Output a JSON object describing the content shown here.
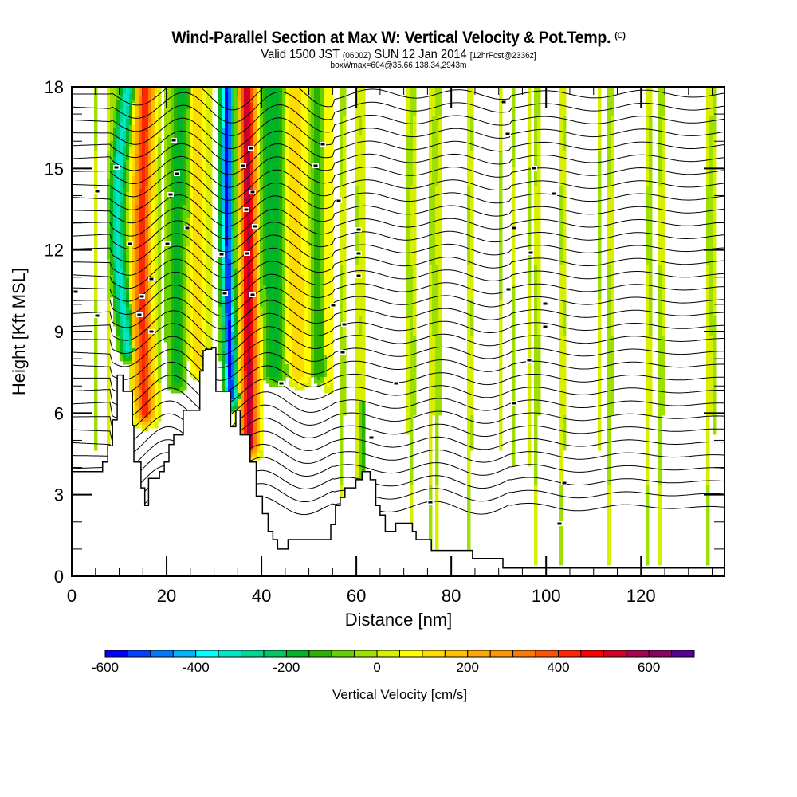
{
  "header": {
    "title": "Wind-Parallel Section at Max W: Vertical Velocity & Pot.Temp.",
    "copyright_mark": "(C)",
    "valid_prefix": "Valid 1500 JST",
    "valid_utc": "(0600Z)",
    "valid_date": "SUN 12 Jan 2014",
    "forecast_info": "[12hrFcst@2336z]",
    "box_info": "boxWmax=604@35.66,138.34,2943m"
  },
  "chart_data": {
    "type": "heatmap",
    "subtype": "vertical cross-section (filled contours of vertical velocity with potential temperature isolines)",
    "title": "Wind-Parallel Section at Max W: Vertical Velocity & Pot.Temp.",
    "xlabel": "Distance [nm]",
    "ylabel": "Height [Kft MSL]",
    "xlim": [
      0,
      137.6
    ],
    "ylim": [
      0,
      18
    ],
    "x_ticks": [
      0,
      20,
      40,
      60,
      80,
      100,
      120
    ],
    "x_tick_labels": [
      "0",
      "20",
      "40",
      "60",
      "80",
      "100",
      "120"
    ],
    "x_minor_step": 5,
    "y_ticks": [
      0,
      3,
      6,
      9,
      12,
      15,
      18
    ],
    "y_tick_labels": [
      "0",
      "3",
      "6",
      "9",
      "12",
      "15",
      "18"
    ],
    "y_minor_step": 1,
    "colorbar": {
      "label": "Vertical Velocity [cm/s]",
      "min": -600,
      "max": 700,
      "step": 50,
      "tick_values": [
        -600,
        -400,
        -200,
        0,
        200,
        400,
        600
      ],
      "tick_labels": [
        "-600",
        "-400",
        "-200",
        "0",
        "200",
        "400",
        "600"
      ],
      "colors": [
        "#0000ff",
        "#0040ff",
        "#0078ff",
        "#00b4ff",
        "#00ffff",
        "#00e6c8",
        "#00d890",
        "#00c860",
        "#00b428",
        "#28b400",
        "#64d200",
        "#a0e000",
        "#d8f000",
        "#ffff00",
        "#ffdc00",
        "#ffc000",
        "#ffaa00",
        "#ff9600",
        "#ff7800",
        "#ff5000",
        "#ff2800",
        "#ff0000",
        "#d20028",
        "#aa0050",
        "#8c0064",
        "#5a0096"
      ]
    },
    "max_w_cm_s": 604,
    "terrain_profile_kft": {
      "x_nm": [
        0,
        6.5,
        7.6,
        8.6,
        9.6,
        10.8,
        12.8,
        13.1,
        14.6,
        15.4,
        16.2,
        17.4,
        18.5,
        19.5,
        20.5,
        21.5,
        22.5,
        23.5,
        24.5,
        27,
        27.7,
        28.2,
        29.5,
        30.4,
        33.5,
        33.5,
        34.6,
        35.5,
        37.6,
        38.9,
        40,
        40.2,
        41.4,
        42.4,
        43.4,
        45.6,
        51.2,
        54.6,
        55.6,
        56.6,
        57.6,
        59.9,
        61.2,
        62.9,
        64.1,
        65,
        66.1,
        68.3,
        71.8,
        72.6,
        75.8,
        84.5,
        90.9,
        137.6
      ],
      "height_kft": [
        3.85,
        4.2,
        4.8,
        5.75,
        7.4,
        6.8,
        5.55,
        4.2,
        3.25,
        2.6,
        3.6,
        3.6,
        3.85,
        4.2,
        4.85,
        5.2,
        5.2,
        6.1,
        6.1,
        7.55,
        8.3,
        8.35,
        8.4,
        6.8,
        6.8,
        5.5,
        6.1,
        5.2,
        4.2,
        2.95,
        2.95,
        2.3,
        1.65,
        1.35,
        1.0,
        1.35,
        1.35,
        1.9,
        2.6,
        2.9,
        3.25,
        3.55,
        3.85,
        3.55,
        2.6,
        2.25,
        1.65,
        1.95,
        1.65,
        1.35,
        0.95,
        0.65,
        0.3,
        0.3
      ]
    },
    "isentrope_labels_K": [
      "28",
      "30",
      "31",
      "32",
      "26",
      "24",
      "22",
      "20",
      "18",
      "16",
      "14",
      "12",
      "10",
      "8"
    ]
  }
}
